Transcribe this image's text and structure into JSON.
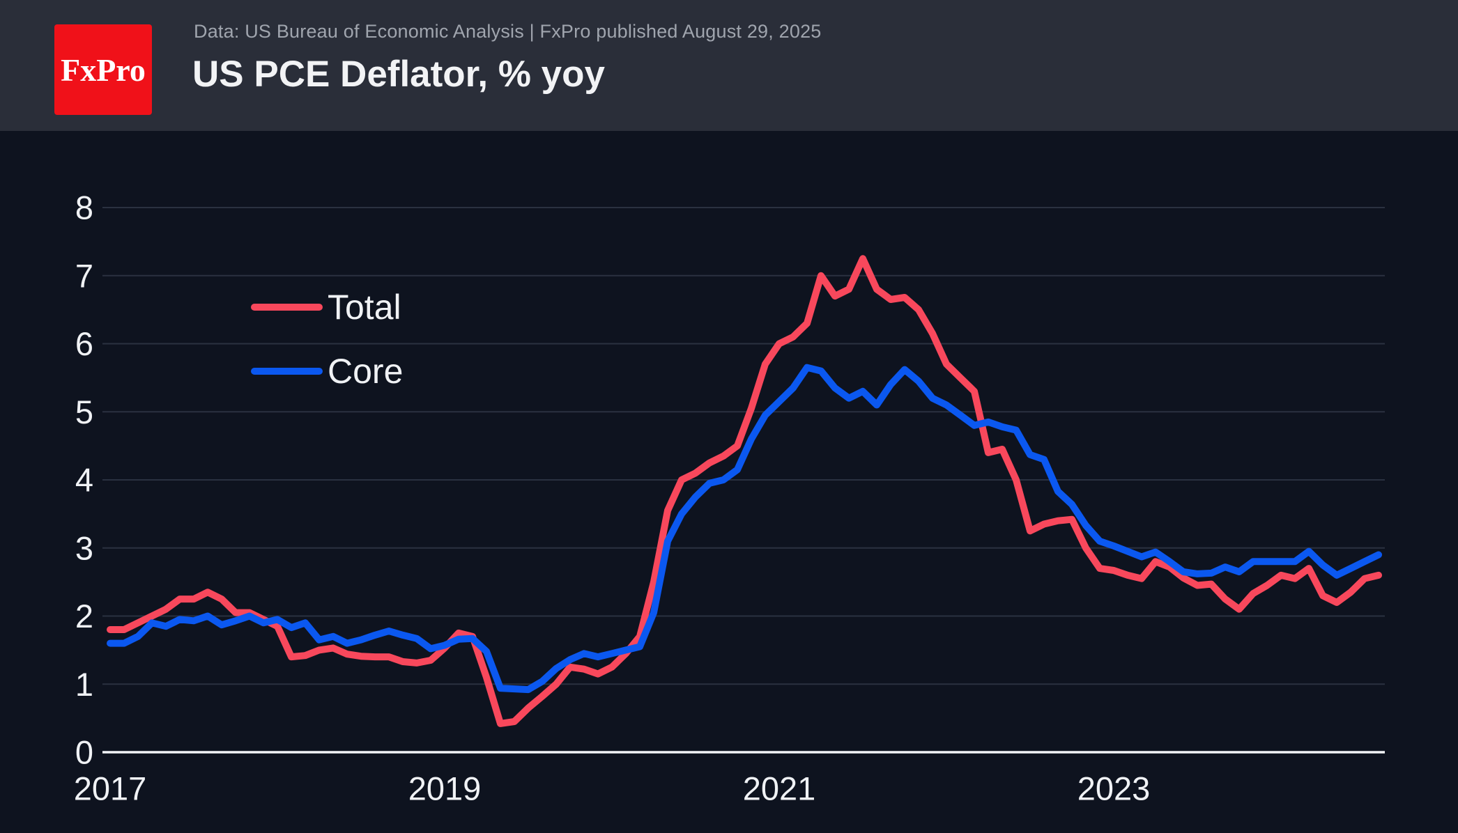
{
  "header": {
    "logo_text": "FxPro",
    "source_line": "Data: US Bureau of Economic Analysis | FxPro published August 29, 2025",
    "title": "US PCE Deflator, % yoy"
  },
  "colors": {
    "background": "#0e131f",
    "header_background": "#2a2e39",
    "logo_red": "#f01119",
    "grid": "#2a3140",
    "axis": "#f2f4f7",
    "tick_text": "#f0f2f5",
    "muted_text": "#a0a5ae",
    "total": "#f8485c",
    "core": "#0b58f0"
  },
  "chart_data": {
    "type": "line",
    "title": "US PCE Deflator, % yoy",
    "x_frequency": "monthly",
    "x_start": "2017-12",
    "x_end": "2025-07",
    "ylim": [
      0,
      8
    ],
    "y_ticks": [
      0,
      1,
      2,
      3,
      4,
      5,
      6,
      7,
      8
    ],
    "x_ticks": [
      {
        "label": "2017",
        "index": 0
      },
      {
        "label": "2019",
        "index": 24
      },
      {
        "label": "2021",
        "index": 48
      },
      {
        "label": "2023",
        "index": 72
      }
    ],
    "grid": "horizontal",
    "legend_position": "upper-left-inside",
    "series": [
      {
        "name": "Total",
        "color": "#f8485c",
        "values": [
          1.8,
          1.8,
          1.9,
          2.0,
          2.1,
          2.25,
          2.25,
          2.35,
          2.25,
          2.05,
          2.05,
          1.95,
          1.85,
          1.4,
          1.42,
          1.5,
          1.53,
          1.44,
          1.41,
          1.4,
          1.4,
          1.33,
          1.31,
          1.35,
          1.53,
          1.75,
          1.7,
          1.1,
          0.42,
          0.45,
          0.65,
          0.82,
          1.0,
          1.25,
          1.22,
          1.15,
          1.25,
          1.45,
          1.7,
          2.5,
          3.55,
          4.0,
          4.1,
          4.25,
          4.35,
          4.5,
          5.05,
          5.7,
          6.0,
          6.1,
          6.3,
          7.0,
          6.7,
          6.8,
          7.25,
          6.8,
          6.65,
          6.68,
          6.5,
          6.15,
          5.7,
          5.5,
          5.3,
          4.4,
          4.45,
          4.0,
          3.25,
          3.35,
          3.4,
          3.42,
          3.0,
          2.7,
          2.67,
          2.6,
          2.55,
          2.8,
          2.72,
          2.56,
          2.45,
          2.47,
          2.25,
          2.1,
          2.33,
          2.45,
          2.6,
          2.55,
          2.7,
          2.3,
          2.2,
          2.35,
          2.55,
          2.6
        ]
      },
      {
        "name": "Core",
        "color": "#0b58f0",
        "values": [
          1.6,
          1.6,
          1.7,
          1.9,
          1.85,
          1.95,
          1.93,
          2.0,
          1.87,
          1.93,
          2.0,
          1.9,
          1.95,
          1.83,
          1.9,
          1.65,
          1.7,
          1.6,
          1.65,
          1.72,
          1.78,
          1.72,
          1.67,
          1.52,
          1.57,
          1.66,
          1.67,
          1.48,
          0.94,
          0.93,
          0.92,
          1.04,
          1.23,
          1.36,
          1.45,
          1.4,
          1.45,
          1.5,
          1.55,
          2.05,
          3.1,
          3.5,
          3.75,
          3.95,
          4.0,
          4.15,
          4.6,
          4.95,
          5.15,
          5.35,
          5.65,
          5.6,
          5.35,
          5.2,
          5.3,
          5.1,
          5.4,
          5.62,
          5.45,
          5.2,
          5.1,
          4.95,
          4.8,
          4.85,
          4.78,
          4.73,
          4.37,
          4.3,
          3.83,
          3.64,
          3.33,
          3.1,
          3.03,
          2.95,
          2.87,
          2.94,
          2.8,
          2.65,
          2.62,
          2.63,
          2.72,
          2.65,
          2.8,
          2.8,
          2.8,
          2.8,
          2.95,
          2.75,
          2.6,
          2.7,
          2.8,
          2.9
        ]
      }
    ]
  }
}
